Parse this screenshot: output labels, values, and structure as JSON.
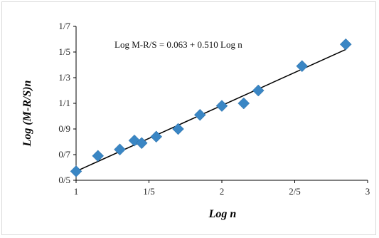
{
  "chart_data": {
    "type": "scatter",
    "xlabel": "Log n",
    "ylabel": "Log (M-R/S)n",
    "equation": "Log M-R/S = 0.063 + 0.510 Log n",
    "x_ticks": [
      {
        "value": 1.0,
        "label": "1"
      },
      {
        "value": 1.5,
        "label": "1/5"
      },
      {
        "value": 2.0,
        "label": "2"
      },
      {
        "value": 2.5,
        "label": "2/5"
      },
      {
        "value": 3.0,
        "label": "3"
      }
    ],
    "y_ticks": [
      {
        "value": 0.5,
        "label": "0/5"
      },
      {
        "value": 0.7,
        "label": "0/7"
      },
      {
        "value": 0.9,
        "label": "0/9"
      },
      {
        "value": 1.1,
        "label": "1/1"
      },
      {
        "value": 1.3,
        "label": "1/3"
      },
      {
        "value": 1.5,
        "label": "1/5"
      },
      {
        "value": 1.7,
        "label": "1/7"
      }
    ],
    "xlim": [
      1.0,
      3.0
    ],
    "ylim": [
      0.5,
      1.7
    ],
    "grid": false,
    "marker_color": "#3a86c4",
    "line_color": "#000000",
    "points": [
      {
        "x": 1.0,
        "y": 0.57
      },
      {
        "x": 1.15,
        "y": 0.69
      },
      {
        "x": 1.3,
        "y": 0.74
      },
      {
        "x": 1.4,
        "y": 0.81
      },
      {
        "x": 1.45,
        "y": 0.79
      },
      {
        "x": 1.55,
        "y": 0.84
      },
      {
        "x": 1.7,
        "y": 0.9
      },
      {
        "x": 1.85,
        "y": 1.01
      },
      {
        "x": 2.0,
        "y": 1.08
      },
      {
        "x": 2.15,
        "y": 1.1
      },
      {
        "x": 2.25,
        "y": 1.2
      },
      {
        "x": 2.55,
        "y": 1.39
      },
      {
        "x": 2.85,
        "y": 1.56
      }
    ],
    "trendline": {
      "x": [
        1.0,
        2.85
      ],
      "y": [
        0.57,
        1.52
      ]
    }
  }
}
